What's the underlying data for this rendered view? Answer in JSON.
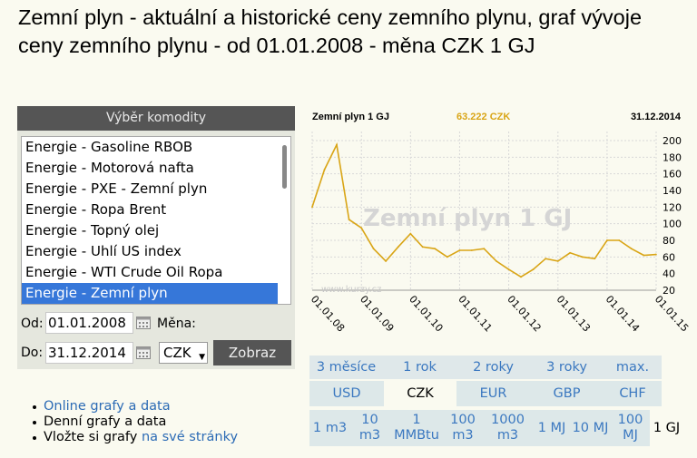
{
  "page": {
    "title": "Zemní plyn - aktuální a historické ceny zemního plynu, graf vývoje ceny zemního plynu - od 01.01.2008 - měna CZK 1 GJ"
  },
  "panel": {
    "header": "Výběr komodity",
    "items": [
      "Energie - Gasoline RBOB",
      "Energie - Motorová nafta",
      "Energie - PXE - Zemní plyn",
      "Energie - Ropa Brent",
      "Energie - Topný olej",
      "Energie - Uhlí US index",
      "Energie - WTI Crude Oil Ropa",
      "Energie - Zemní plyn"
    ],
    "selected_index": 7,
    "from_label": "Od:",
    "from_value": "01.01.2008",
    "currency_label": "Měna:",
    "to_label": "Do:",
    "to_value": "31.12.2014",
    "currency_value": "CZK",
    "submit_label": "Zobraz"
  },
  "links": {
    "online": "Online grafy a data",
    "daily": "Denní grafy a data",
    "embed_prefix": "Vložte si grafy",
    "embed_link": "na své stránky"
  },
  "chart_data": {
    "type": "line",
    "title": "Zemní plyn 1 GJ",
    "last_value": "63.222 CZK",
    "date": "31.12.2014",
    "watermark": "Zemní plyn 1 GJ",
    "watermark_site": "www.kurzy.cz",
    "x": [
      "01.01.08",
      "01.04.08",
      "01.07.08",
      "01.10.08",
      "01.01.09",
      "01.04.09",
      "01.07.09",
      "01.10.09",
      "01.01.10",
      "01.04.10",
      "01.07.10",
      "01.10.10",
      "01.01.11",
      "01.04.11",
      "01.07.11",
      "01.10.11",
      "01.01.12",
      "01.04.12",
      "01.07.12",
      "01.10.12",
      "01.01.13",
      "01.04.13",
      "01.07.13",
      "01.10.13",
      "01.01.14",
      "01.04.14",
      "01.07.14",
      "01.10.14",
      "31.12.14"
    ],
    "values": [
      120,
      165,
      195,
      105,
      95,
      70,
      55,
      72,
      88,
      72,
      70,
      60,
      68,
      68,
      70,
      55,
      45,
      36,
      45,
      58,
      55,
      65,
      60,
      58,
      80,
      80,
      70,
      62,
      63
    ],
    "x_tick_labels": [
      "01.01.08",
      "01.01.09",
      "01.01.10",
      "01.01.11",
      "01.01.12",
      "01.01.13",
      "01.01.14",
      "01.01.15"
    ],
    "ylim": [
      20,
      200
    ],
    "y_ticks": [
      20,
      40,
      60,
      80,
      100,
      120,
      140,
      160,
      180,
      200
    ],
    "line_color": "#d9a516",
    "grid": true
  },
  "tabs": {
    "periods": [
      "3 měsíce",
      "1 rok",
      "2 roky",
      "3 roky",
      "max."
    ],
    "currencies": [
      "USD",
      "CZK",
      "EUR",
      "GBP",
      "CHF"
    ],
    "active_currency": 1,
    "units": [
      "1 m3",
      "10 m3",
      "1 MMBtu",
      "100 m3",
      "1000 m3",
      "1 MJ",
      "10 MJ",
      "100 MJ",
      "1 GJ"
    ],
    "active_unit": 8
  }
}
